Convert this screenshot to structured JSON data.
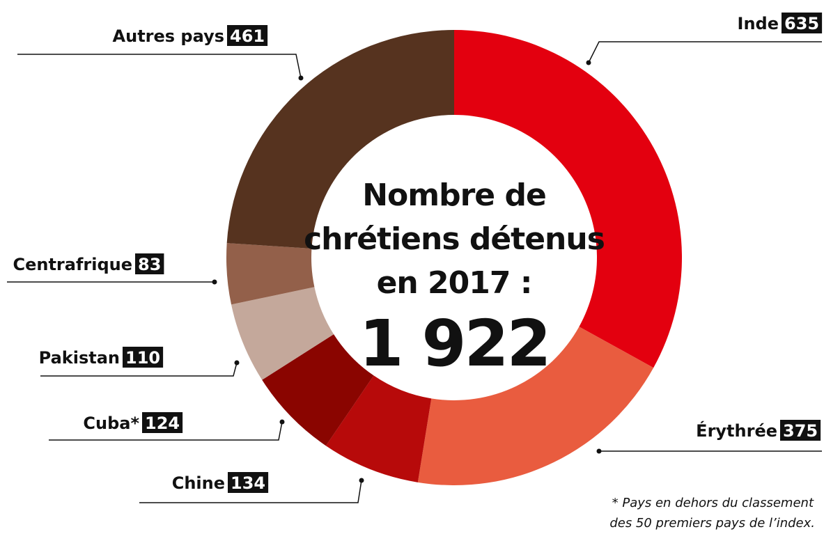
{
  "chart_data": {
    "type": "donut",
    "center_title": [
      "Nombre de",
      "chrétiens détenus",
      "en 2017 :"
    ],
    "total": "1 922",
    "categories": [
      "Inde",
      "Érythrée",
      "Chine",
      "Cuba*",
      "Pakistan",
      "Centrafrique",
      "Autres pays"
    ],
    "values": [
      635,
      375,
      134,
      124,
      110,
      83,
      461
    ],
    "colors": [
      "#e3000f",
      "#e95c3f",
      "#b70a0a",
      "#8a0500",
      "#c4a89b",
      "#93604a",
      "#56331f"
    ],
    "footnote": [
      "* Pays en dehors du classement",
      "des 50 premiers pays de l’index."
    ]
  }
}
